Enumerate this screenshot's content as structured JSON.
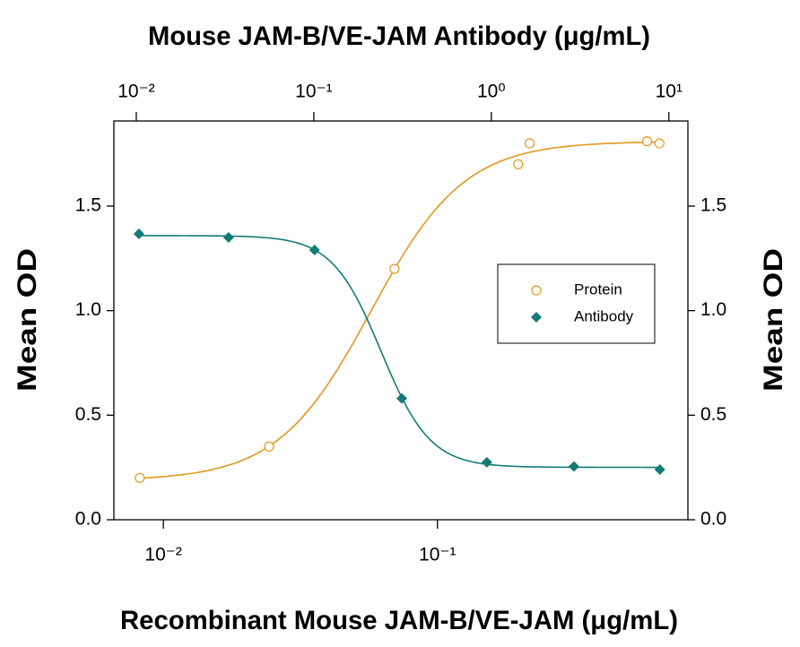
{
  "chart_data": {
    "type": "scatter",
    "title": "Mouse JAM-B/VE-JAM Antibody (μg/mL)",
    "xlabel": "Recombinant Mouse JAM-B/VE-JAM (μg/mL)",
    "ylabel": "Mean OD",
    "y2label": "Mean OD",
    "xscale": "log",
    "x2scale": "log",
    "xlim": [
      0.0066,
      0.82
    ],
    "xticks": [
      {
        "value": 0.01,
        "label": "10⁻²"
      },
      {
        "value": 0.1,
        "label": "10⁻¹"
      }
    ],
    "x2lim": [
      0.00748,
      12.8
    ],
    "x2ticks": [
      {
        "value": 0.01,
        "label": "10⁻²"
      },
      {
        "value": 0.1,
        "label": "10⁻¹"
      },
      {
        "value": 1,
        "label": "10⁰"
      },
      {
        "value": 10,
        "label": "10¹"
      }
    ],
    "ylim": [
      0,
      1.907
    ],
    "yticks": [
      {
        "value": 0,
        "label": "0.0"
      },
      0.5,
      {
        "value": 1,
        "label": "1.0"
      },
      1.5
    ],
    "y2lim": [
      0,
      1.907
    ],
    "y2ticks": [
      {
        "value": 0,
        "label": "0.0"
      },
      0.5,
      {
        "value": 1,
        "label": "1.0"
      },
      1.5
    ],
    "legend": "center right",
    "series": [
      {
        "name": "Protein",
        "color": "#e3961c",
        "marker": "open-circle",
        "xaxis": "x",
        "x": [
          0.0082,
          0.0243,
          0.0697,
          0.197,
          0.217,
          0.582,
          0.646
        ],
        "values": [
          0.2,
          0.35,
          1.2,
          1.7,
          1.8,
          1.81,
          1.8
        ]
      },
      {
        "name": "Antibody",
        "color": "#137b78",
        "marker": "diamond",
        "xaxis": "x2",
        "axis": "y2",
        "x": [
          0.01035,
          0.0331,
          0.101,
          0.313,
          0.944,
          2.92,
          8.9
        ],
        "values": [
          1.367,
          1.35,
          1.29,
          0.58,
          0.275,
          0.255,
          0.24
        ]
      }
    ]
  }
}
